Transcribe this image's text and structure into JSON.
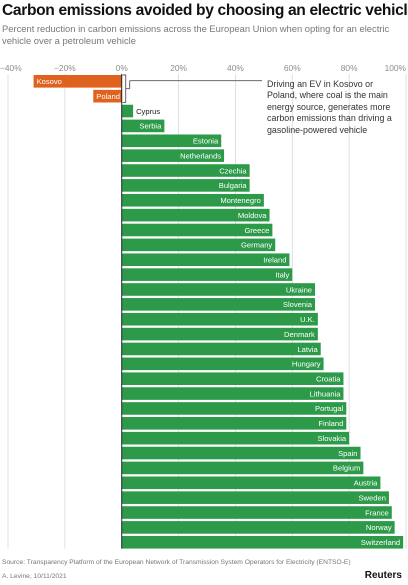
{
  "header": {
    "title": "Carbon emissions avoided by choosing an electric vehicle",
    "subtitle": "Percent reduction in carbon emissions across the European Union when opting for an electric vehicle over a petroleum vehicle"
  },
  "annotation": {
    "text": "Driving an EV in Kosovo or Poland, where coal is the main energy source, generates more carbon emissions than driving a gasoline-powered vehicle"
  },
  "footer": {
    "source": "Source: Transparency Platform of the European Network of Transmission System Operators for Electricity (ENTSO-E)",
    "author": "A. Levine, 10/11/2021",
    "logo": "Reuters"
  },
  "colors": {
    "positive": "#2d9a49",
    "negative": "#e0621f",
    "grid": "#d9d9d9",
    "axis": "#222222"
  },
  "chart_data": {
    "type": "bar",
    "orientation": "horizontal",
    "title": "Carbon emissions avoided by choosing an electric vehicle",
    "subtitle": "Percent reduction in carbon emissions across the European Union when opting for an electric vehicle over a petroleum vehicle",
    "xlim": [
      -40,
      100
    ],
    "xticks": [
      -40,
      -20,
      0,
      20,
      40,
      60,
      80,
      100
    ],
    "xtick_labels": [
      "−40%",
      "−20%",
      "0%",
      "20%",
      "40%",
      "60%",
      "80%",
      "100%"
    ],
    "grid": true,
    "categories": [
      "Kosovo",
      "Poland",
      "Cyprus",
      "Serbia",
      "Estonia",
      "Netherlands",
      "Czechia",
      "Bulgaria",
      "Montenegro",
      "Moldova",
      "Greece",
      "Germany",
      "Ireland",
      "Italy",
      "Ukraine",
      "Slovenia",
      "U.K.",
      "Denmark",
      "Latvia",
      "Hungary",
      "Croatia",
      "Lithuania",
      "Portugal",
      "Finland",
      "Slovakia",
      "Spain",
      "Belgium",
      "Austria",
      "Sweden",
      "France",
      "Norway",
      "Switzerland"
    ],
    "values": [
      -31,
      -10,
      4,
      15,
      35,
      36,
      45,
      45,
      50,
      52,
      53,
      54,
      59,
      60,
      68,
      68,
      69,
      69,
      70,
      71,
      78,
      78,
      79,
      79,
      80,
      84,
      85,
      91,
      94,
      95,
      96,
      99
    ]
  }
}
